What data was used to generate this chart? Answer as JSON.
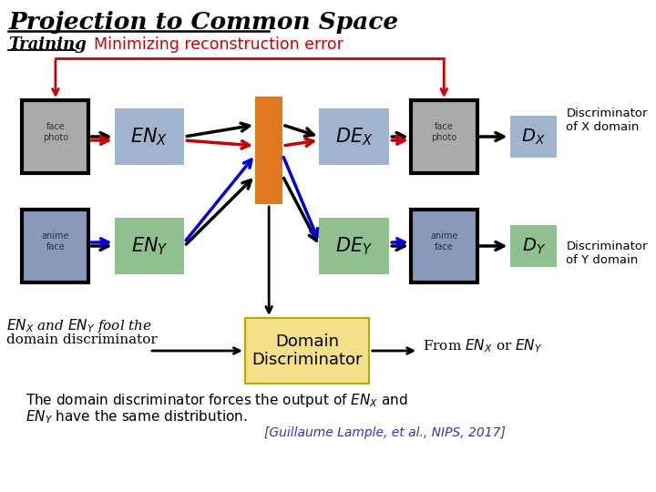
{
  "title": "Projection to Common Space",
  "subtitle": "Training",
  "subtitle2": "Minimizing reconstruction error",
  "bg_color": "#ffffff",
  "title_color": "#000000",
  "red_color": "#cc0000",
  "blue_color": "#0000dd",
  "black_color": "#000000",
  "orange_color": "#e07820",
  "enc_x_color": "#a0b4d0",
  "enc_y_color": "#90c090",
  "dec_x_color": "#a0b4d0",
  "dec_y_color": "#90c090",
  "dx_color": "#a0b4d0",
  "dy_color": "#90c090",
  "domain_disc_color": "#f5e08a",
  "citation_color": "#3333bb",
  "citation": "[Guillaume Lample, et al., NIPS, 2017]",
  "img1_color": "#aaaaaa",
  "img2_color": "#aaaaaa",
  "img3_color": "#8899bb",
  "img4_color": "#8899bb"
}
